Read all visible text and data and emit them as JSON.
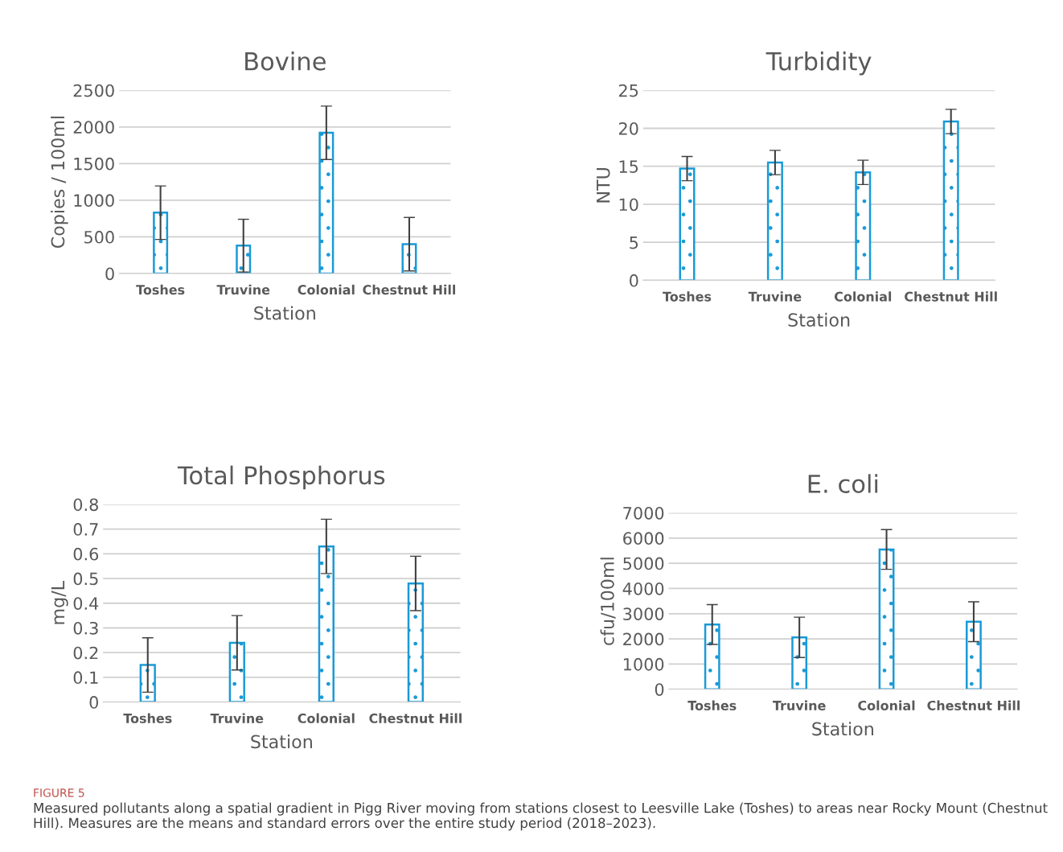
{
  "chart_data": [
    {
      "type": "bar",
      "title": "Bovine",
      "xlabel": "Station",
      "ylabel": "Copies / 100ml",
      "categories": [
        "Toshes",
        "Truvine",
        "Colonial",
        "Chestnut Hill"
      ],
      "values": [
        830,
        380,
        1920,
        400
      ],
      "errors": [
        365,
        360,
        365,
        365
      ],
      "color": "#1a9ad6",
      "ylim": [
        0,
        2500
      ],
      "yticks": [
        0,
        500,
        1000,
        1500,
        2000,
        2500
      ],
      "grid": "y",
      "legend": false
    },
    {
      "type": "bar",
      "title": "Turbidity",
      "xlabel": "Station",
      "ylabel": "NTU",
      "categories": [
        "Toshes",
        "Truvine",
        "Colonial",
        "Chestnut Hill"
      ],
      "values": [
        14.7,
        15.5,
        14.2,
        20.9
      ],
      "errors": [
        1.6,
        1.6,
        1.6,
        1.6
      ],
      "color": "#1a9ad6",
      "ylim": [
        0,
        25
      ],
      "yticks": [
        0,
        5,
        10,
        15,
        20,
        25
      ],
      "grid": "y",
      "legend": false
    },
    {
      "type": "bar",
      "title": "Total Phosphorus",
      "xlabel": "Station",
      "ylabel": "mg/L",
      "categories": [
        "Toshes",
        "Truvine",
        "Colonial",
        "Chestnut Hill"
      ],
      "values": [
        0.15,
        0.24,
        0.63,
        0.48
      ],
      "errors": [
        0.11,
        0.11,
        0.11,
        0.11
      ],
      "color": "#1a9ad6",
      "ylim": [
        0,
        0.8
      ],
      "yticks": [
        0,
        0.1,
        0.2,
        0.3,
        0.4,
        0.5,
        0.6,
        0.7,
        0.8
      ],
      "grid": "y",
      "legend": false
    },
    {
      "type": "bar",
      "title": "E. coli",
      "xlabel": "Station",
      "ylabel": "cfu/100ml",
      "categories": [
        "Toshes",
        "Truvine",
        "Colonial",
        "Chestnut Hill"
      ],
      "values": [
        2570,
        2060,
        5550,
        2680
      ],
      "errors": [
        790,
        800,
        790,
        790
      ],
      "color": "#1a9ad6",
      "ylim": [
        0,
        7000
      ],
      "yticks": [
        0,
        1000,
        2000,
        3000,
        4000,
        5000,
        6000,
        7000
      ],
      "grid": "y",
      "legend": false,
      "annotations": [
        "FIGURE 5",
        "Measured pollutants along a spatial gradient in Pigg River moving from stations closest to Leesville Lake (Toshes) to areas near Rocky Mount (Chestnut Hill). Measures are the means and standard errors over the entire study period (2018–2023)."
      ]
    }
  ]
}
